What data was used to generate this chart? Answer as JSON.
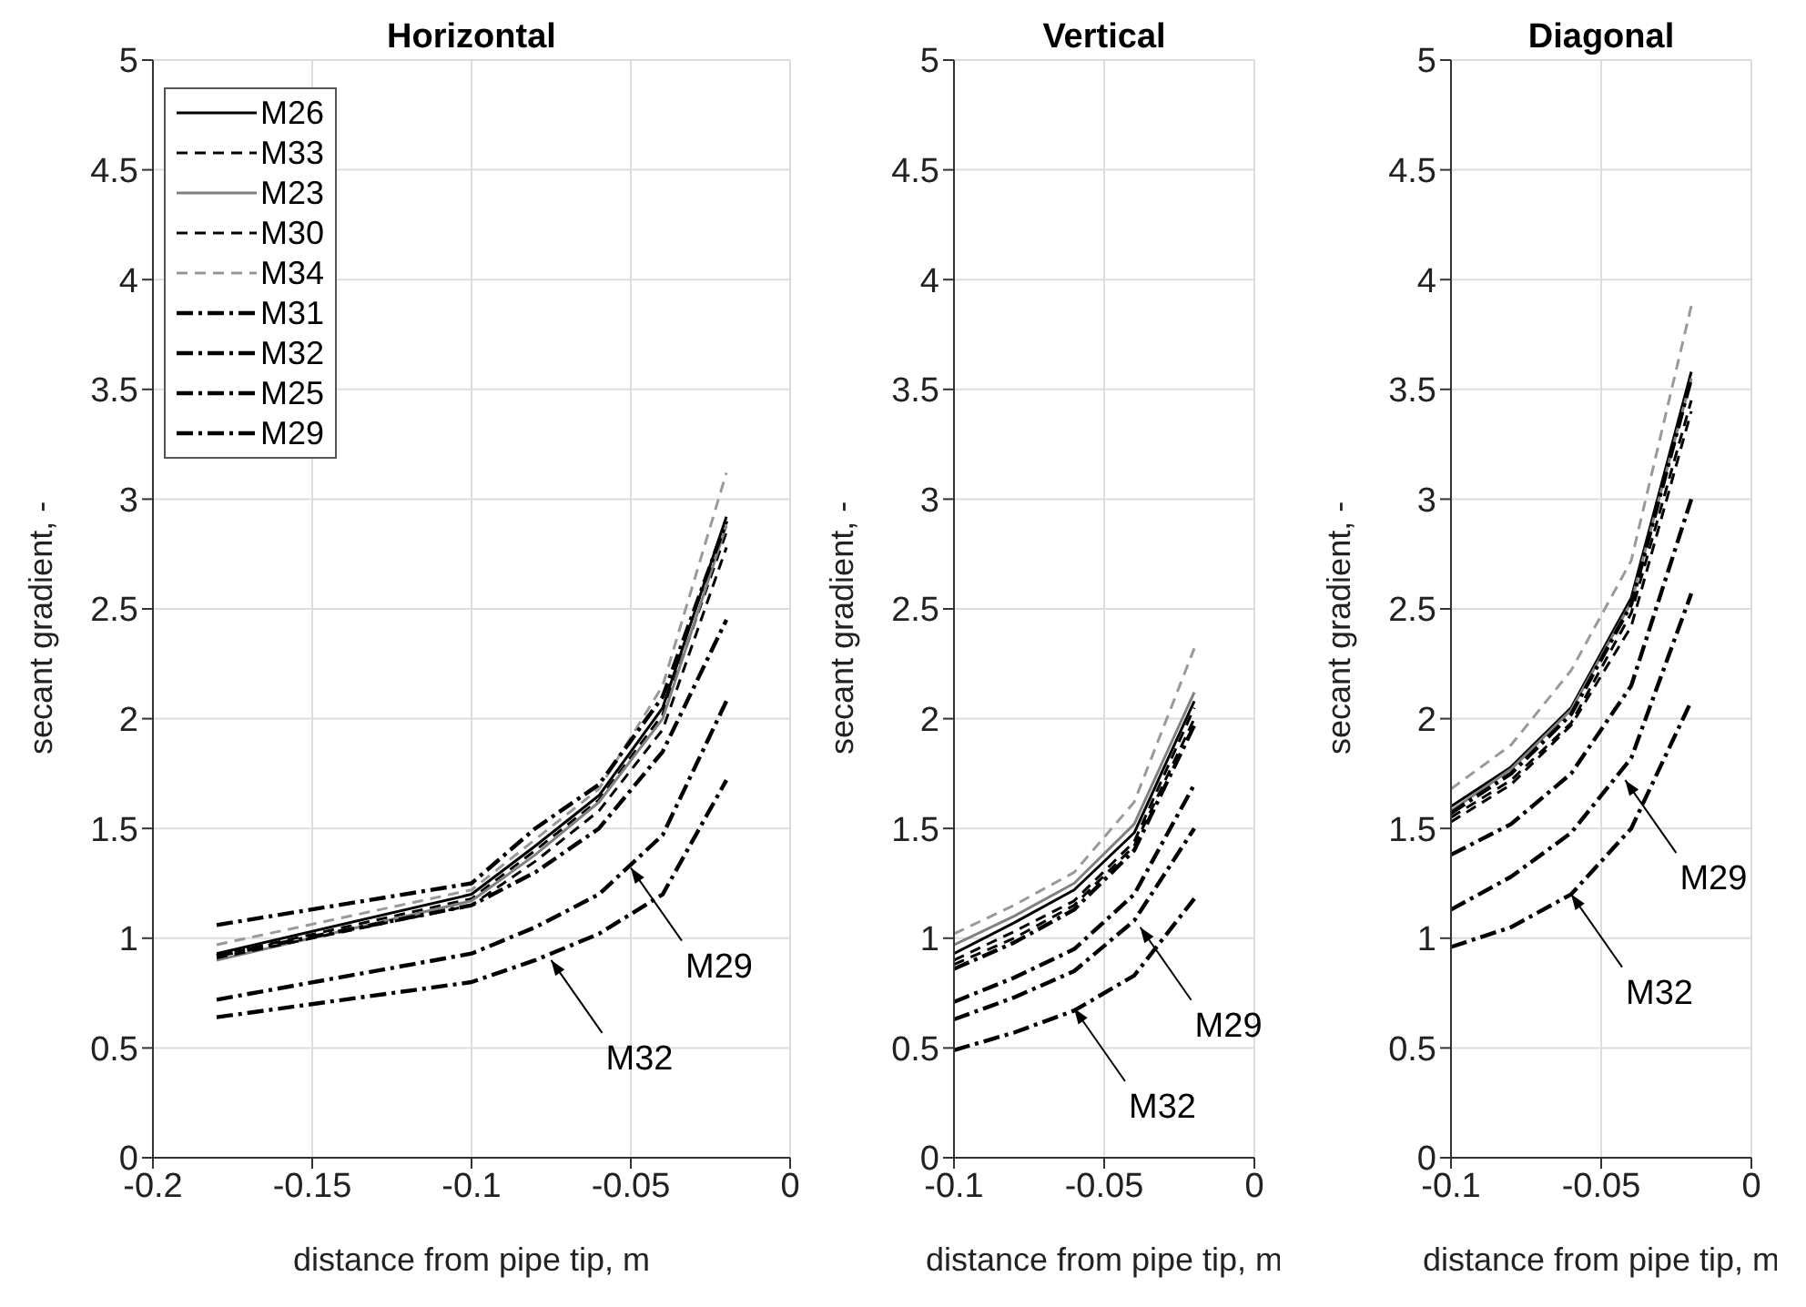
{
  "chart_data": [
    {
      "type": "line",
      "title": "Horizontal",
      "xlabel": "distance from pipe tip, m",
      "ylabel": "secant gradient, -",
      "x": [
        -0.18,
        -0.1,
        -0.08,
        -0.06,
        -0.04,
        -0.02
      ],
      "xlim": [
        -0.2,
        0
      ],
      "xticks": [
        -0.2,
        -0.15,
        -0.1,
        -0.05,
        0
      ],
      "ylim": [
        0,
        5
      ],
      "yticks": [
        0,
        0.5,
        1,
        1.5,
        2,
        2.5,
        3,
        3.5,
        4,
        4.5,
        5
      ],
      "grid": true,
      "legend": "top left",
      "marker": "none",
      "series": [
        {
          "name": "M26",
          "color": "#000000",
          "line_style": "solid",
          "values": [
            0.93,
            1.2,
            1.42,
            1.65,
            2.05,
            2.92
          ]
        },
        {
          "name": "M33",
          "color": "#000000",
          "line_style": "dashed",
          "values": [
            0.92,
            1.18,
            1.4,
            1.63,
            2.02,
            2.85
          ]
        },
        {
          "name": "M23",
          "color": "#808080",
          "line_style": "solid",
          "values": [
            0.9,
            1.17,
            1.38,
            1.62,
            2.0,
            2.88
          ]
        },
        {
          "name": "M30",
          "color": "#000000",
          "line_style": "dashed",
          "values": [
            0.91,
            1.15,
            1.35,
            1.58,
            1.95,
            2.78
          ]
        },
        {
          "name": "M34",
          "color": "#999999",
          "line_style": "dashed",
          "values": [
            0.97,
            1.22,
            1.45,
            1.68,
            2.15,
            3.12
          ]
        },
        {
          "name": "M31",
          "color": "#000000",
          "line_style": "dashdot",
          "values": [
            0.92,
            1.15,
            1.3,
            1.5,
            1.85,
            2.45
          ]
        },
        {
          "name": "M32",
          "color": "#000000",
          "line_style": "dashdot",
          "values": [
            0.64,
            0.8,
            0.9,
            1.02,
            1.2,
            1.72
          ]
        },
        {
          "name": "M25",
          "color": "#000000",
          "line_style": "dashdot",
          "values": [
            1.06,
            1.25,
            1.5,
            1.7,
            2.1,
            2.9
          ]
        },
        {
          "name": "M29",
          "color": "#000000",
          "line_style": "dashdot",
          "values": [
            0.72,
            0.93,
            1.05,
            1.2,
            1.47,
            2.08
          ]
        }
      ],
      "annotations": [
        {
          "text": "M29",
          "x": -0.05,
          "y": 1.32
        },
        {
          "text": "M32",
          "x": -0.075,
          "y": 0.9
        }
      ]
    },
    {
      "type": "line",
      "title": "Vertical",
      "xlabel": "distance from pipe tip, m",
      "ylabel": "secant gradient, -",
      "x": [
        -0.1,
        -0.08,
        -0.06,
        -0.04,
        -0.02
      ],
      "xlim": [
        -0.1,
        0
      ],
      "xticks": [
        -0.1,
        -0.05,
        0
      ],
      "ylim": [
        0,
        5
      ],
      "yticks": [
        0,
        0.5,
        1,
        1.5,
        2,
        2.5,
        3,
        3.5,
        4,
        4.5,
        5
      ],
      "grid": true,
      "marker": "none",
      "series": [
        {
          "color": "#000000",
          "line_style": "solid",
          "values": [
            0.93,
            1.07,
            1.22,
            1.48,
            2.08
          ]
        },
        {
          "color": "#000000",
          "line_style": "dashed",
          "values": [
            0.9,
            1.03,
            1.17,
            1.44,
            2.05
          ]
        },
        {
          "color": "#808080",
          "line_style": "solid",
          "values": [
            0.97,
            1.1,
            1.25,
            1.52,
            2.12
          ]
        },
        {
          "color": "#000000",
          "line_style": "dashed",
          "values": [
            0.88,
            1.0,
            1.15,
            1.42,
            2.0
          ]
        },
        {
          "color": "#999999",
          "line_style": "dashed",
          "values": [
            1.02,
            1.15,
            1.3,
            1.62,
            2.32
          ]
        },
        {
          "color": "#000000",
          "line_style": "dashdot",
          "values": [
            0.71,
            0.82,
            0.95,
            1.2,
            1.7
          ]
        },
        {
          "color": "#000000",
          "line_style": "dashdot",
          "values": [
            0.49,
            0.57,
            0.67,
            0.83,
            1.18
          ]
        },
        {
          "color": "#000000",
          "line_style": "dashdot",
          "values": [
            0.86,
            0.98,
            1.13,
            1.4,
            1.97
          ]
        },
        {
          "color": "#000000",
          "line_style": "dashdot",
          "values": [
            0.63,
            0.73,
            0.85,
            1.08,
            1.5
          ]
        }
      ],
      "annotations": [
        {
          "text": "M29",
          "x": -0.038,
          "y": 1.05
        },
        {
          "text": "M32",
          "x": -0.06,
          "y": 0.68
        }
      ]
    },
    {
      "type": "line",
      "title": "Diagonal",
      "xlabel": "distance from pipe tip, m",
      "ylabel": "secant gradient, -",
      "x": [
        -0.1,
        -0.08,
        -0.06,
        -0.04,
        -0.02
      ],
      "xlim": [
        -0.1,
        0
      ],
      "xticks": [
        -0.1,
        -0.05,
        0
      ],
      "ylim": [
        0,
        5
      ],
      "yticks": [
        0,
        0.5,
        1,
        1.5,
        2,
        2.5,
        3,
        3.5,
        4,
        4.5,
        5
      ],
      "grid": true,
      "marker": "none",
      "series": [
        {
          "color": "#000000",
          "line_style": "solid",
          "values": [
            1.6,
            1.78,
            2.05,
            2.55,
            3.58
          ]
        },
        {
          "color": "#000000",
          "line_style": "dashed",
          "values": [
            1.55,
            1.72,
            1.98,
            2.48,
            3.45
          ]
        },
        {
          "color": "#808080",
          "line_style": "solid",
          "values": [
            1.58,
            1.77,
            2.04,
            2.53,
            3.55
          ]
        },
        {
          "color": "#000000",
          "line_style": "dashed",
          "values": [
            1.53,
            1.7,
            1.97,
            2.42,
            3.4
          ]
        },
        {
          "color": "#999999",
          "line_style": "dashed",
          "values": [
            1.68,
            1.88,
            2.22,
            2.72,
            3.88
          ]
        },
        {
          "color": "#000000",
          "line_style": "dashdot",
          "values": [
            1.38,
            1.52,
            1.75,
            2.15,
            3.0
          ]
        },
        {
          "color": "#000000",
          "line_style": "dashdot",
          "values": [
            0.96,
            1.05,
            1.2,
            1.5,
            2.08
          ]
        },
        {
          "color": "#000000",
          "line_style": "dashdot",
          "values": [
            1.57,
            1.75,
            2.02,
            2.52,
            3.55
          ]
        },
        {
          "color": "#000000",
          "line_style": "dashdot",
          "values": [
            1.13,
            1.28,
            1.48,
            1.82,
            2.57
          ]
        }
      ],
      "annotations": [
        {
          "text": "M29",
          "x": -0.042,
          "y": 1.72
        },
        {
          "text": "M32",
          "x": -0.06,
          "y": 1.2
        }
      ]
    }
  ]
}
